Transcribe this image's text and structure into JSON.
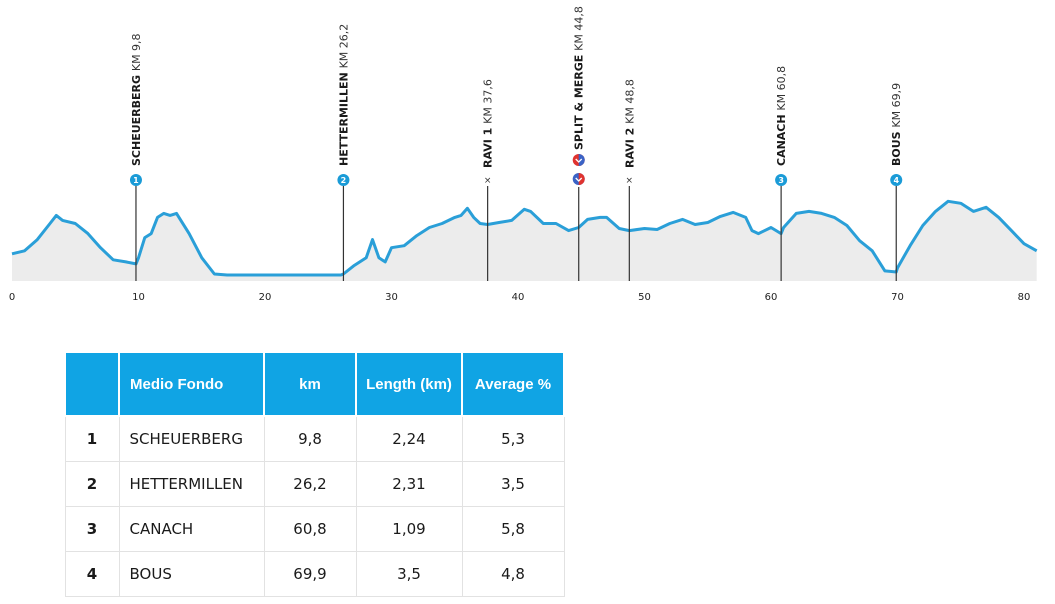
{
  "chart_data": {
    "type": "area",
    "x_ticks": [
      "0",
      "10",
      "20",
      "30",
      "40",
      "50",
      "60",
      "70",
      "80"
    ],
    "xlim": [
      0,
      81
    ],
    "profile": [
      [
        0,
        0.22
      ],
      [
        1,
        0.25
      ],
      [
        2,
        0.36
      ],
      [
        3,
        0.52
      ],
      [
        3.5,
        0.6
      ],
      [
        4,
        0.55
      ],
      [
        5,
        0.52
      ],
      [
        6,
        0.42
      ],
      [
        7,
        0.28
      ],
      [
        8,
        0.16
      ],
      [
        9,
        0.14
      ],
      [
        9.8,
        0.12
      ],
      [
        10,
        0.18
      ],
      [
        10.5,
        0.38
      ],
      [
        11,
        0.42
      ],
      [
        11.5,
        0.58
      ],
      [
        12,
        0.62
      ],
      [
        12.5,
        0.6
      ],
      [
        13,
        0.62
      ],
      [
        14,
        0.42
      ],
      [
        15,
        0.18
      ],
      [
        16,
        0.02
      ],
      [
        17,
        0.01
      ],
      [
        20,
        0.01
      ],
      [
        24,
        0.01
      ],
      [
        26,
        0.01
      ],
      [
        26.2,
        0.02
      ],
      [
        27,
        0.1
      ],
      [
        28,
        0.18
      ],
      [
        28.5,
        0.36
      ],
      [
        29,
        0.18
      ],
      [
        29.5,
        0.14
      ],
      [
        30,
        0.28
      ],
      [
        31,
        0.3
      ],
      [
        32,
        0.4
      ],
      [
        33,
        0.48
      ],
      [
        34,
        0.52
      ],
      [
        35,
        0.58
      ],
      [
        35.5,
        0.6
      ],
      [
        36,
        0.67
      ],
      [
        36.5,
        0.58
      ],
      [
        37,
        0.52
      ],
      [
        37.6,
        0.51
      ],
      [
        38.5,
        0.53
      ],
      [
        39.5,
        0.55
      ],
      [
        40.5,
        0.66
      ],
      [
        41,
        0.64
      ],
      [
        42,
        0.52
      ],
      [
        43,
        0.52
      ],
      [
        44,
        0.45
      ],
      [
        44.8,
        0.48
      ],
      [
        45.5,
        0.56
      ],
      [
        46.5,
        0.58
      ],
      [
        47,
        0.58
      ],
      [
        48,
        0.47
      ],
      [
        48.8,
        0.45
      ],
      [
        50,
        0.47
      ],
      [
        51,
        0.46
      ],
      [
        52,
        0.52
      ],
      [
        53,
        0.56
      ],
      [
        54,
        0.51
      ],
      [
        55,
        0.53
      ],
      [
        56,
        0.59
      ],
      [
        57,
        0.63
      ],
      [
        58,
        0.58
      ],
      [
        58.5,
        0.45
      ],
      [
        59,
        0.42
      ],
      [
        60,
        0.48
      ],
      [
        60.8,
        0.42
      ],
      [
        61,
        0.48
      ],
      [
        62,
        0.62
      ],
      [
        63,
        0.64
      ],
      [
        64,
        0.62
      ],
      [
        65,
        0.58
      ],
      [
        66,
        0.5
      ],
      [
        67,
        0.35
      ],
      [
        68,
        0.25
      ],
      [
        69,
        0.05
      ],
      [
        69.9,
        0.04
      ],
      [
        70,
        0.08
      ],
      [
        71,
        0.3
      ],
      [
        72,
        0.5
      ],
      [
        73,
        0.64
      ],
      [
        74,
        0.74
      ],
      [
        75,
        0.72
      ],
      [
        76,
        0.64
      ],
      [
        77,
        0.68
      ],
      [
        78,
        0.58
      ],
      [
        79,
        0.45
      ],
      [
        80,
        0.32
      ],
      [
        81,
        0.25
      ]
    ],
    "markers": [
      {
        "name": "SCHEUERBERG",
        "km_label": "KM 9,8",
        "km": 9.8,
        "badge": "1",
        "kind": "climb"
      },
      {
        "name": "HETTERMILLEN",
        "km_label": "KM 26,2",
        "km": 26.2,
        "badge": "2",
        "kind": "climb"
      },
      {
        "name": "RAVI 1",
        "km_label": "KM 37,6",
        "km": 37.6,
        "badge": "×",
        "kind": "feed"
      },
      {
        "name": "SPLIT & MERGE",
        "km_label": "KM 44,8",
        "km": 44.8,
        "badge": "",
        "kind": "split"
      },
      {
        "name": "RAVI 2",
        "km_label": "KM 48,8",
        "km": 48.8,
        "badge": "×",
        "kind": "feed"
      },
      {
        "name": "CANACH",
        "km_label": "KM 60,8",
        "km": 60.8,
        "badge": "3",
        "kind": "climb"
      },
      {
        "name": "BOUS",
        "km_label": "KM 69,9",
        "km": 69.9,
        "badge": "4",
        "kind": "climb"
      }
    ],
    "colors": {
      "line": "#2a9fd8",
      "fill": "#ececec",
      "badge": "#1a9bd7",
      "split_red": "#e0332f",
      "split_blue": "#3a63c6"
    }
  },
  "table": {
    "headers": {
      "index": "",
      "name": "Medio Fondo",
      "km": "km",
      "length": "Length (km)",
      "average": "Average %"
    },
    "rows": [
      {
        "index": "1",
        "name": "SCHEUERBERG",
        "km": "9,8",
        "length": "2,24",
        "average": "5,3"
      },
      {
        "index": "2",
        "name": "HETTERMILLEN",
        "km": "26,2",
        "length": "2,31",
        "average": "3,5"
      },
      {
        "index": "3",
        "name": "CANACH",
        "km": "60,8",
        "length": "1,09",
        "average": "5,8"
      },
      {
        "index": "4",
        "name": "BOUS",
        "km": "69,9",
        "length": "3,5",
        "average": "4,8"
      }
    ]
  }
}
